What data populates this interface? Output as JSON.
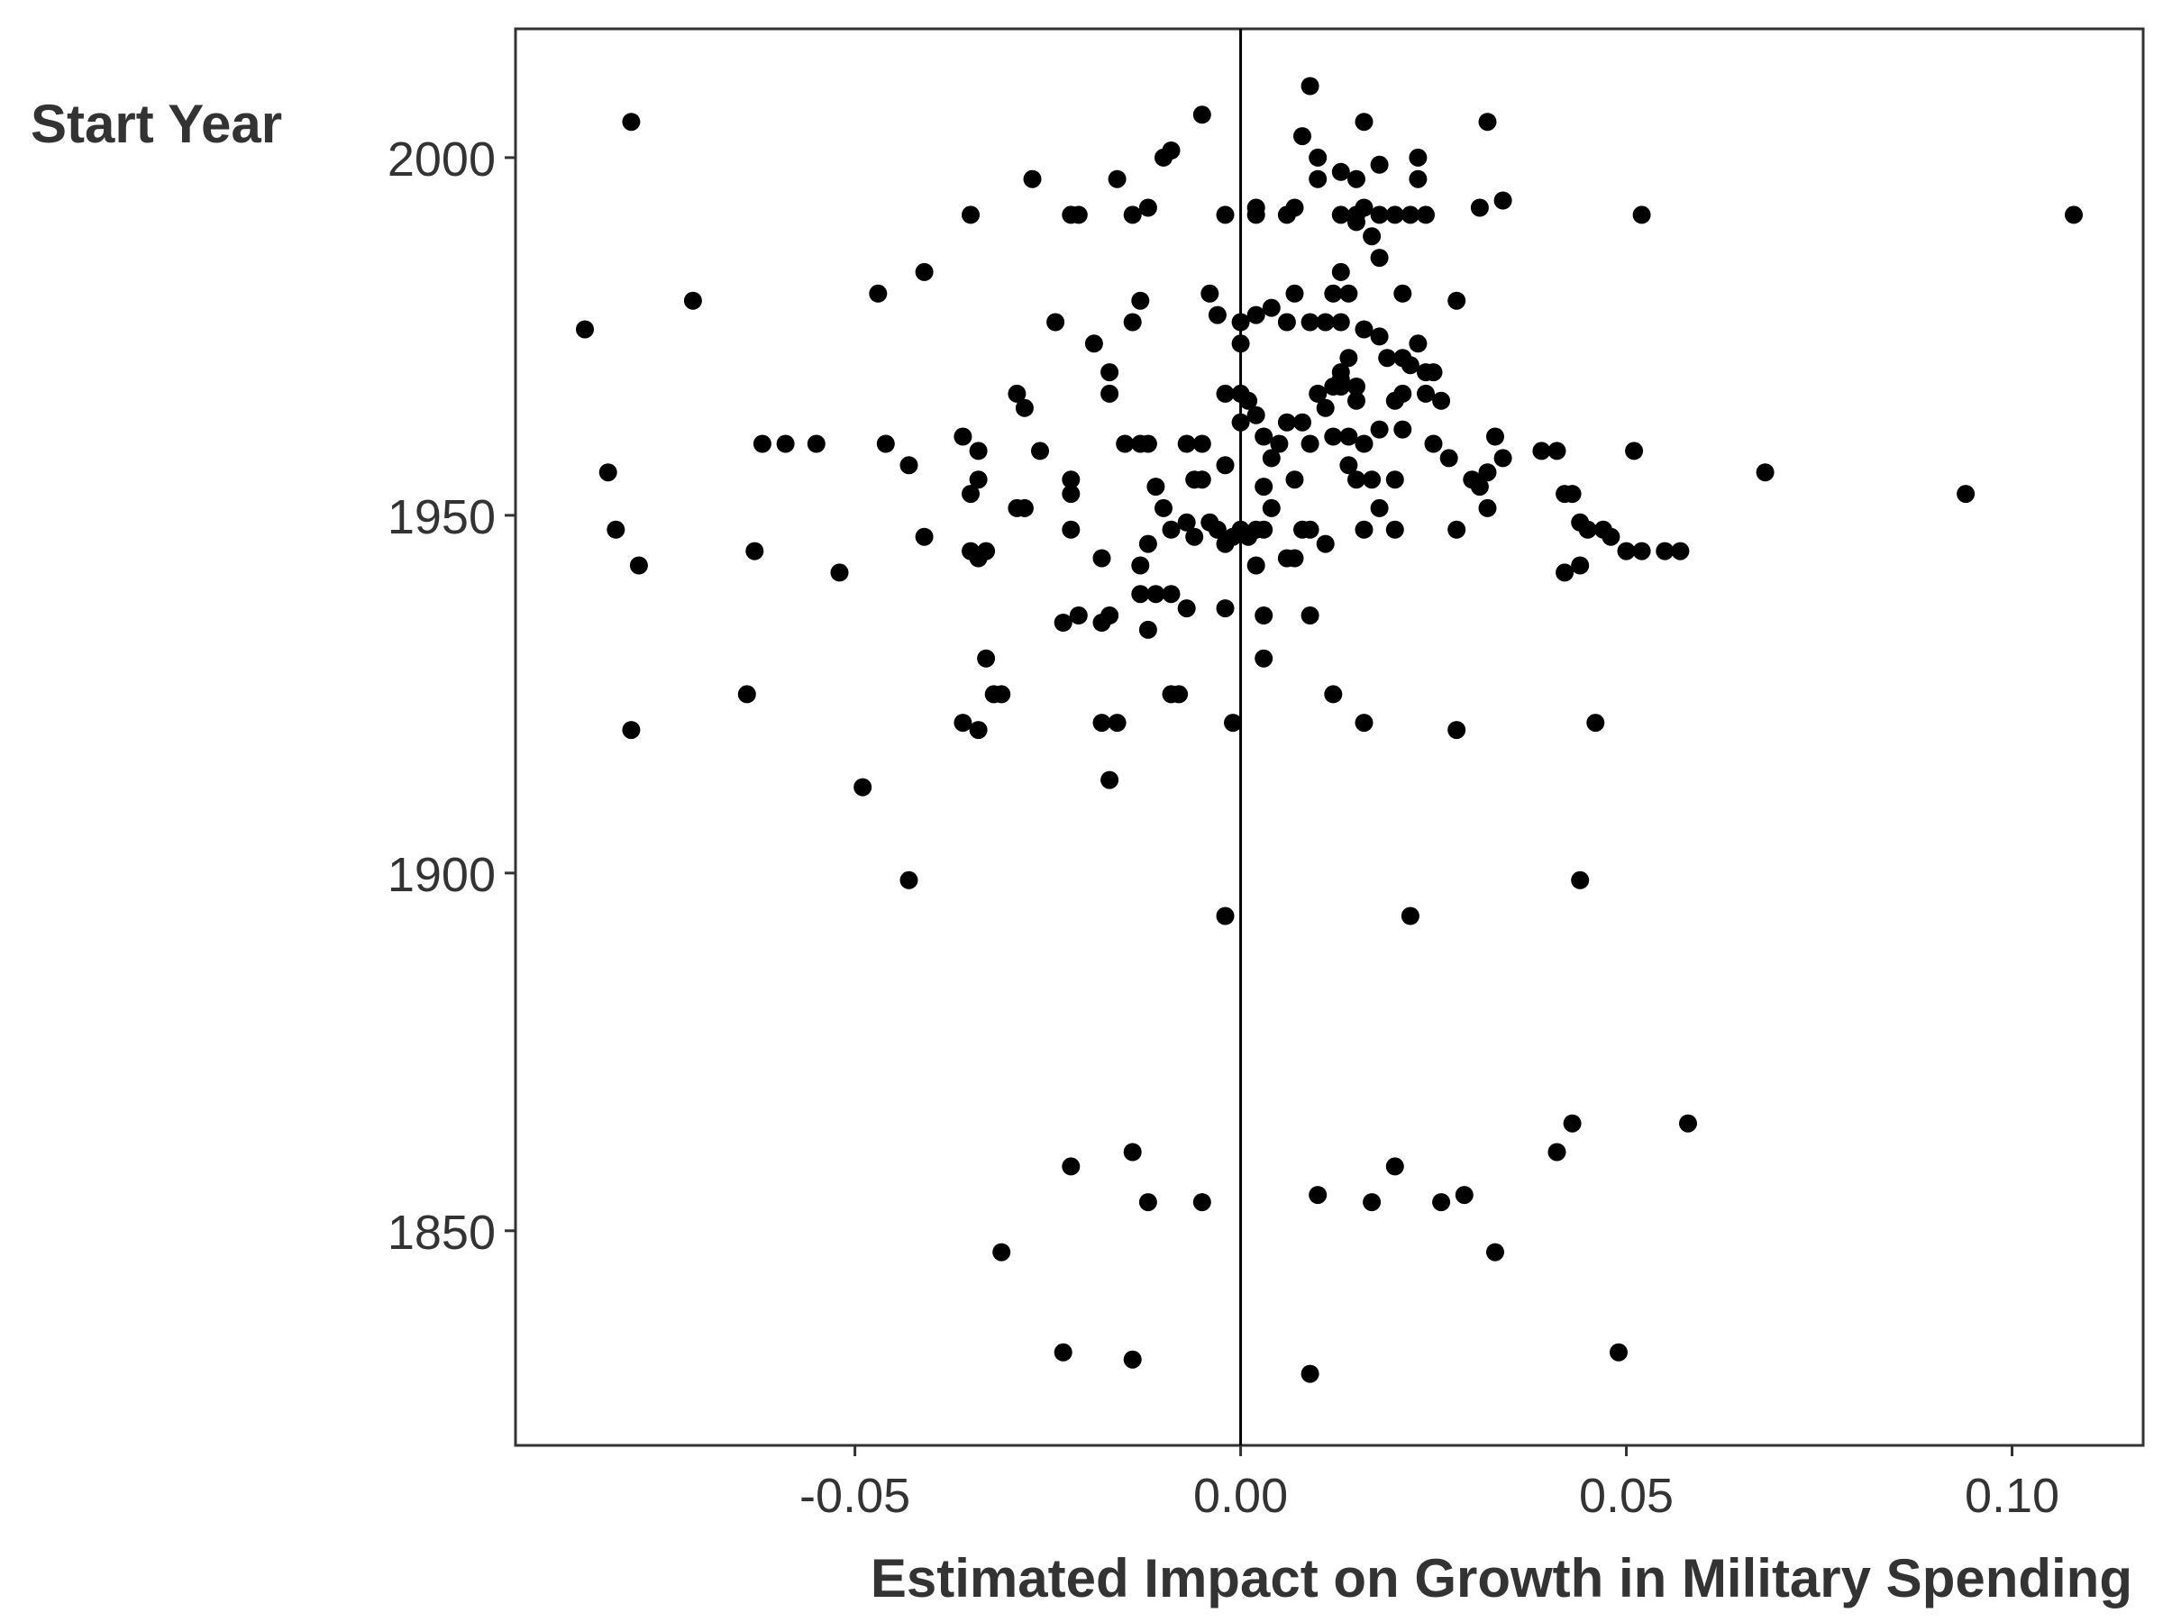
{
  "chart_data": {
    "type": "scatter",
    "title": "",
    "xlabel": "Estimated Impact on Growth in Military Spending",
    "ylabel": "Start Year",
    "xlim": [
      -0.094,
      0.117
    ],
    "ylim": [
      1820,
      2018
    ],
    "x_ticks": [
      -0.05,
      0.0,
      0.05,
      0.1
    ],
    "x_tick_labels": [
      "-0.05",
      "0.00",
      "0.05",
      "0.10"
    ],
    "y_ticks": [
      1850,
      1900,
      1950,
      2000
    ],
    "y_tick_labels": [
      "1850",
      "1900",
      "1950",
      "2000"
    ],
    "reference_line_x": 0,
    "grid": false,
    "legend": "none",
    "point_color": "#000000",
    "points": [
      [
        0.009,
        2010
      ],
      [
        -0.079,
        2005
      ],
      [
        0.032,
        2005
      ],
      [
        0.016,
        2005
      ],
      [
        -0.005,
        2006
      ],
      [
        0.008,
        2003
      ],
      [
        -0.009,
        2001
      ],
      [
        -0.01,
        2000
      ],
      [
        0.01,
        2000
      ],
      [
        0.023,
        2000
      ],
      [
        0.013,
        1998
      ],
      [
        0.018,
        1999
      ],
      [
        -0.027,
        1997
      ],
      [
        -0.016,
        1997
      ],
      [
        0.01,
        1997
      ],
      [
        0.015,
        1997
      ],
      [
        0.023,
        1997
      ],
      [
        -0.035,
        1992
      ],
      [
        -0.022,
        1992
      ],
      [
        -0.021,
        1992
      ],
      [
        -0.014,
        1992
      ],
      [
        -0.012,
        1993
      ],
      [
        -0.002,
        1992
      ],
      [
        0.002,
        1993
      ],
      [
        0.002,
        1992
      ],
      [
        0.006,
        1992
      ],
      [
        0.007,
        1993
      ],
      [
        0.013,
        1992
      ],
      [
        0.015,
        1992
      ],
      [
        0.016,
        1993
      ],
      [
        0.018,
        1992
      ],
      [
        0.02,
        1992
      ],
      [
        0.022,
        1992
      ],
      [
        0.024,
        1992
      ],
      [
        0.031,
        1993
      ],
      [
        0.034,
        1994
      ],
      [
        0.052,
        1992
      ],
      [
        0.108,
        1992
      ],
      [
        0.015,
        1991
      ],
      [
        0.017,
        1989
      ],
      [
        0.018,
        1986
      ],
      [
        -0.041,
        1984
      ],
      [
        -0.047,
        1981
      ],
      [
        -0.071,
        1980
      ],
      [
        -0.013,
        1980
      ],
      [
        -0.004,
        1981
      ],
      [
        0.007,
        1981
      ],
      [
        0.012,
        1981
      ],
      [
        0.014,
        1981
      ],
      [
        0.021,
        1981
      ],
      [
        0.028,
        1980
      ],
      [
        0.013,
        1984
      ],
      [
        -0.003,
        1978
      ],
      [
        0.0,
        1977
      ],
      [
        0.002,
        1978
      ],
      [
        0.004,
        1979
      ],
      [
        0.006,
        1977
      ],
      [
        0.009,
        1977
      ],
      [
        0.011,
        1977
      ],
      [
        0.013,
        1977
      ],
      [
        0.016,
        1976
      ],
      [
        0.018,
        1975
      ],
      [
        -0.085,
        1976
      ],
      [
        -0.024,
        1977
      ],
      [
        -0.014,
        1977
      ],
      [
        -0.019,
        1974
      ],
      [
        0.0,
        1974
      ],
      [
        0.023,
        1974
      ],
      [
        -0.017,
        1970
      ],
      [
        0.013,
        1970
      ],
      [
        0.014,
        1972
      ],
      [
        0.019,
        1972
      ],
      [
        0.021,
        1972
      ],
      [
        0.022,
        1971
      ],
      [
        0.024,
        1970
      ],
      [
        0.025,
        1970
      ],
      [
        0.012,
        1968
      ],
      [
        0.013,
        1969
      ],
      [
        0.015,
        1968
      ],
      [
        0.02,
        1966
      ],
      [
        0.021,
        1967
      ],
      [
        0.024,
        1967
      ],
      [
        0.026,
        1966
      ],
      [
        -0.029,
        1967
      ],
      [
        -0.028,
        1965
      ],
      [
        -0.017,
        1967
      ],
      [
        -0.002,
        1967
      ],
      [
        0.0,
        1967
      ],
      [
        0.001,
        1966
      ],
      [
        0.002,
        1964
      ],
      [
        0.01,
        1967
      ],
      [
        0.011,
        1965
      ],
      [
        0.013,
        1968
      ],
      [
        0.015,
        1966
      ],
      [
        -0.055,
        1960
      ],
      [
        -0.059,
        1960
      ],
      [
        -0.062,
        1960
      ],
      [
        -0.046,
        1960
      ],
      [
        -0.036,
        1961
      ],
      [
        -0.034,
        1959
      ],
      [
        -0.026,
        1959
      ],
      [
        -0.015,
        1960
      ],
      [
        -0.013,
        1960
      ],
      [
        -0.012,
        1960
      ],
      [
        -0.007,
        1960
      ],
      [
        -0.005,
        1960
      ],
      [
        0.0,
        1963
      ],
      [
        0.003,
        1961
      ],
      [
        0.005,
        1960
      ],
      [
        0.006,
        1963
      ],
      [
        0.008,
        1963
      ],
      [
        0.009,
        1960
      ],
      [
        0.012,
        1961
      ],
      [
        0.014,
        1961
      ],
      [
        0.016,
        1960
      ],
      [
        0.018,
        1962
      ],
      [
        0.021,
        1962
      ],
      [
        0.025,
        1960
      ],
      [
        0.033,
        1961
      ],
      [
        0.039,
        1959
      ],
      [
        0.041,
        1959
      ],
      [
        0.051,
        1959
      ],
      [
        -0.082,
        1956
      ],
      [
        -0.043,
        1957
      ],
      [
        -0.034,
        1955
      ],
      [
        -0.035,
        1953
      ],
      [
        -0.022,
        1955
      ],
      [
        -0.022,
        1953
      ],
      [
        -0.011,
        1954
      ],
      [
        -0.006,
        1955
      ],
      [
        -0.005,
        1955
      ],
      [
        -0.002,
        1957
      ],
      [
        0.004,
        1958
      ],
      [
        0.007,
        1955
      ],
      [
        0.014,
        1957
      ],
      [
        0.015,
        1955
      ],
      [
        0.017,
        1955
      ],
      [
        0.02,
        1955
      ],
      [
        0.027,
        1958
      ],
      [
        0.03,
        1955
      ],
      [
        0.031,
        1954
      ],
      [
        0.032,
        1956
      ],
      [
        0.034,
        1958
      ],
      [
        0.068,
        1956
      ],
      [
        0.094,
        1953
      ],
      [
        0.042,
        1953
      ],
      [
        0.043,
        1953
      ],
      [
        -0.081,
        1948
      ],
      [
        -0.063,
        1945
      ],
      [
        -0.041,
        1947
      ],
      [
        -0.035,
        1945
      ],
      [
        -0.034,
        1944
      ],
      [
        -0.033,
        1945
      ],
      [
        -0.029,
        1951
      ],
      [
        -0.028,
        1951
      ],
      [
        -0.022,
        1948
      ],
      [
        -0.018,
        1944
      ],
      [
        -0.012,
        1946
      ],
      [
        -0.013,
        1943
      ],
      [
        -0.01,
        1951
      ],
      [
        -0.009,
        1948
      ],
      [
        -0.007,
        1949
      ],
      [
        -0.006,
        1947
      ],
      [
        -0.004,
        1949
      ],
      [
        -0.003,
        1948
      ],
      [
        -0.002,
        1946
      ],
      [
        -0.001,
        1947
      ],
      [
        0.0,
        1948
      ],
      [
        0.001,
        1947
      ],
      [
        0.002,
        1948
      ],
      [
        0.003,
        1954
      ],
      [
        0.003,
        1948
      ],
      [
        0.004,
        1951
      ],
      [
        0.006,
        1944
      ],
      [
        0.007,
        1944
      ],
      [
        0.008,
        1948
      ],
      [
        0.009,
        1948
      ],
      [
        0.011,
        1946
      ],
      [
        0.016,
        1948
      ],
      [
        0.018,
        1951
      ],
      [
        0.02,
        1948
      ],
      [
        0.028,
        1948
      ],
      [
        0.032,
        1951
      ],
      [
        0.044,
        1949
      ],
      [
        0.045,
        1948
      ],
      [
        0.047,
        1948
      ],
      [
        0.048,
        1947
      ],
      [
        0.05,
        1945
      ],
      [
        0.052,
        1945
      ],
      [
        0.055,
        1945
      ],
      [
        0.057,
        1945
      ],
      [
        -0.078,
        1943
      ],
      [
        -0.052,
        1942
      ],
      [
        -0.013,
        1939
      ],
      [
        -0.011,
        1939
      ],
      [
        -0.009,
        1939
      ],
      [
        0.002,
        1943
      ],
      [
        0.042,
        1942
      ],
      [
        0.044,
        1943
      ],
      [
        -0.023,
        1935
      ],
      [
        -0.021,
        1936
      ],
      [
        -0.018,
        1935
      ],
      [
        -0.017,
        1936
      ],
      [
        -0.012,
        1934
      ],
      [
        -0.007,
        1937
      ],
      [
        -0.002,
        1937
      ],
      [
        0.003,
        1936
      ],
      [
        0.009,
        1936
      ],
      [
        -0.033,
        1930
      ],
      [
        0.003,
        1930
      ],
      [
        -0.064,
        1925
      ],
      [
        -0.032,
        1925
      ],
      [
        -0.031,
        1925
      ],
      [
        -0.009,
        1925
      ],
      [
        -0.008,
        1925
      ],
      [
        0.012,
        1925
      ],
      [
        -0.079,
        1920
      ],
      [
        -0.036,
        1921
      ],
      [
        -0.034,
        1920
      ],
      [
        -0.018,
        1921
      ],
      [
        -0.016,
        1921
      ],
      [
        -0.001,
        1921
      ],
      [
        0.016,
        1921
      ],
      [
        0.028,
        1920
      ],
      [
        0.046,
        1921
      ],
      [
        -0.049,
        1912
      ],
      [
        -0.017,
        1913
      ],
      [
        -0.043,
        1899
      ],
      [
        0.044,
        1899
      ],
      [
        -0.002,
        1894
      ],
      [
        0.022,
        1894
      ],
      [
        0.043,
        1865
      ],
      [
        0.058,
        1865
      ],
      [
        -0.014,
        1861
      ],
      [
        0.041,
        1861
      ],
      [
        -0.022,
        1859
      ],
      [
        0.02,
        1859
      ],
      [
        -0.012,
        1854
      ],
      [
        -0.005,
        1854
      ],
      [
        0.01,
        1855
      ],
      [
        0.017,
        1854
      ],
      [
        0.026,
        1854
      ],
      [
        0.029,
        1855
      ],
      [
        -0.031,
        1847
      ],
      [
        0.033,
        1847
      ],
      [
        -0.023,
        1833
      ],
      [
        -0.014,
        1832
      ],
      [
        0.049,
        1833
      ],
      [
        0.009,
        1830
      ]
    ]
  }
}
